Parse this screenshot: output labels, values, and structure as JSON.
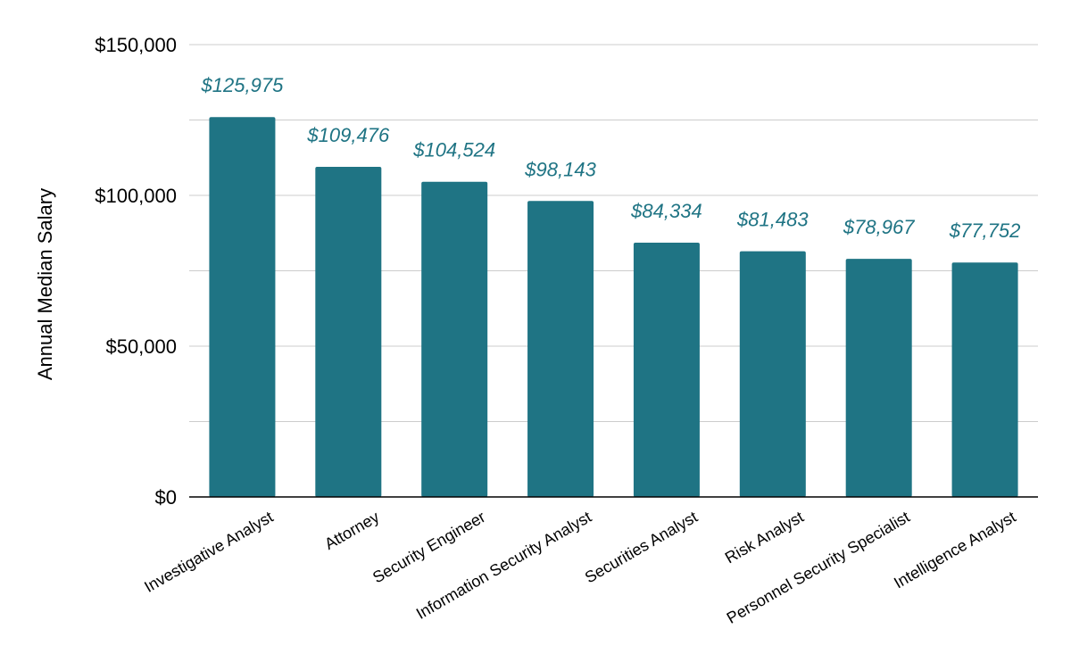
{
  "chart_data": {
    "type": "bar",
    "title": "",
    "xlabel": "",
    "ylabel": "Annual Median Salary",
    "ylim": [
      0,
      150000
    ],
    "y_ticks": [
      {
        "value": 0,
        "label": "$0"
      },
      {
        "value": 50000,
        "label": "$50,000"
      },
      {
        "value": 100000,
        "label": "$100,000"
      },
      {
        "value": 150000,
        "label": "$150,000"
      }
    ],
    "minor_gridlines": [
      25000,
      75000,
      125000
    ],
    "grid": true,
    "legend": "none",
    "categories": [
      "Investigative Analyst",
      "Attorney",
      "Security Engineer",
      "Information Security Analyst",
      "Securities Analyst",
      "Risk Analyst",
      "Personnel Security Specialist",
      "Intelligence Analyst"
    ],
    "values": [
      125975,
      109476,
      104524,
      98143,
      84334,
      81483,
      78967,
      77752
    ],
    "data_labels": [
      "$125,975",
      "$109,476",
      "$104,524",
      "$98,143",
      "$84,334",
      "$81,483",
      "$78,967",
      "$77,752"
    ],
    "colors": {
      "bar": "#1f7484",
      "data_label": "#1f7484",
      "gridline": "#cccccc",
      "axis": "#000000"
    }
  }
}
